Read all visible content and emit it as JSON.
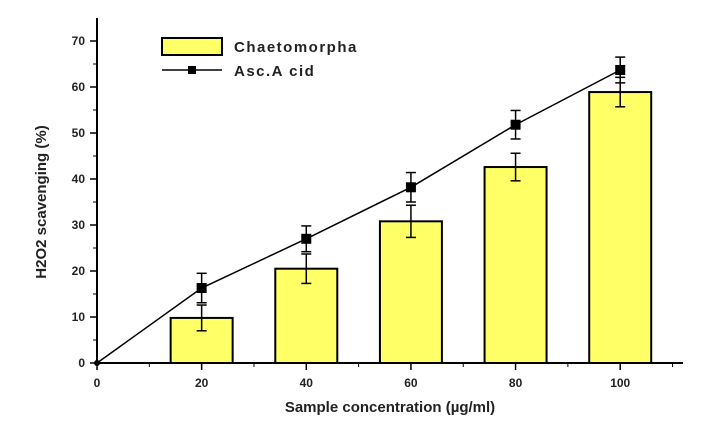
{
  "chart_data": {
    "type": "bar",
    "xlabel": "Sample concentration (µg/ml)",
    "ylabel": "H2O2 scavenging (%)",
    "xlim": [
      0,
      112
    ],
    "ylim": [
      0,
      75
    ],
    "x_ticks": [
      0,
      20,
      40,
      60,
      80,
      100
    ],
    "y_ticks": [
      0,
      10,
      20,
      30,
      40,
      50,
      60,
      70
    ],
    "grid": false,
    "legend_position": "top-left",
    "series": [
      {
        "name": "Chaetomorpha",
        "type": "bar",
        "color": "#ffff66",
        "x": [
          20,
          40,
          60,
          80,
          100
        ],
        "values": [
          9.8,
          20.5,
          30.8,
          42.6,
          58.9
        ],
        "error": [
          2.8,
          3.2,
          3.5,
          3.0,
          3.2
        ]
      },
      {
        "name": "Asc.A cid",
        "type": "line",
        "color": "#000000",
        "x": [
          0,
          20,
          40,
          60,
          80,
          100
        ],
        "values": [
          0,
          16.3,
          27.0,
          38.2,
          51.8,
          63.7
        ],
        "error": [
          0,
          3.2,
          2.8,
          3.2,
          3.1,
          2.8
        ]
      }
    ]
  }
}
